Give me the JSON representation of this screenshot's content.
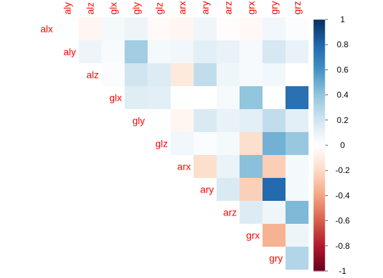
{
  "chart_data": {
    "type": "heatmap",
    "title": "",
    "variables": [
      "alx",
      "aly",
      "alz",
      "glx",
      "gly",
      "glz",
      "arx",
      "ary",
      "arz",
      "grx",
      "gry",
      "grz"
    ],
    "layout": "upper triangle, diagonal omitted",
    "label_color": "#ff0000",
    "rows": [
      {
        "name": "alx",
        "columns": [
          "aly",
          "alz",
          "glx",
          "gly",
          "glz",
          "arx",
          "ary",
          "arz",
          "grx",
          "gry",
          "grz"
        ],
        "values": [
          0.01,
          -0.05,
          0.05,
          0.08,
          -0.03,
          -0.05,
          0.07,
          -0.01,
          -0.04,
          0.06,
          0.02
        ]
      },
      {
        "name": "aly",
        "columns": [
          "alz",
          "glx",
          "gly",
          "glz",
          "arx",
          "ary",
          "arz",
          "grx",
          "gry",
          "grz"
        ],
        "values": [
          0.08,
          0.03,
          0.35,
          0.05,
          0.06,
          0.12,
          0.1,
          0.04,
          0.18,
          0.1
        ]
      },
      {
        "name": "alz",
        "columns": [
          "glx",
          "gly",
          "glz",
          "arx",
          "ary",
          "arz",
          "grx",
          "gry",
          "grz"
        ],
        "values": [
          0.02,
          0.2,
          0.15,
          -0.12,
          0.25,
          0.07,
          0.04,
          0.06,
          0.0
        ]
      },
      {
        "name": "glx",
        "columns": [
          "gly",
          "glz",
          "arx",
          "ary",
          "arz",
          "grx",
          "gry",
          "grz"
        ],
        "values": [
          0.14,
          0.12,
          0.01,
          0.0,
          0.04,
          0.4,
          0.01,
          0.75
        ]
      },
      {
        "name": "gly",
        "columns": [
          "glz",
          "arx",
          "ary",
          "arz",
          "grx",
          "gry",
          "grz"
        ],
        "values": [
          0.01,
          -0.05,
          0.16,
          0.1,
          0.12,
          0.25,
          0.12
        ]
      },
      {
        "name": "glz",
        "columns": [
          "arx",
          "ary",
          "arz",
          "grx",
          "gry",
          "grz"
        ],
        "values": [
          0.06,
          0.02,
          0.05,
          -0.18,
          0.48,
          0.38
        ]
      },
      {
        "name": "arx",
        "columns": [
          "ary",
          "arz",
          "grx",
          "gry",
          "grz"
        ],
        "values": [
          -0.18,
          0.09,
          0.42,
          -0.25,
          0.05
        ]
      },
      {
        "name": "ary",
        "columns": [
          "arz",
          "grx",
          "gry",
          "grz"
        ],
        "values": [
          0.16,
          -0.24,
          0.78,
          0.05
        ]
      },
      {
        "name": "arz",
        "columns": [
          "grx",
          "gry",
          "grz"
        ],
        "values": [
          0.15,
          0.07,
          0.45
        ]
      },
      {
        "name": "grx",
        "columns": [
          "gry",
          "grz"
        ],
        "values": [
          -0.35,
          0.08
        ]
      },
      {
        "name": "gry",
        "columns": [
          "grz"
        ],
        "values": [
          0.3
        ]
      }
    ],
    "colorbar": {
      "range": [
        -1,
        1
      ],
      "ticks": [
        "1",
        "0.8",
        "0.6",
        "0.4",
        "0.2",
        "0",
        "-0.2",
        "-0.4",
        "-0.6",
        "-0.8",
        "-1"
      ],
      "colors": [
        "#67001f",
        "#b2182b",
        "#d6604d",
        "#f4a582",
        "#fddbc7",
        "#ffffff",
        "#d1e5f0",
        "#92c5de",
        "#4393c3",
        "#2166ac",
        "#053061"
      ]
    }
  }
}
